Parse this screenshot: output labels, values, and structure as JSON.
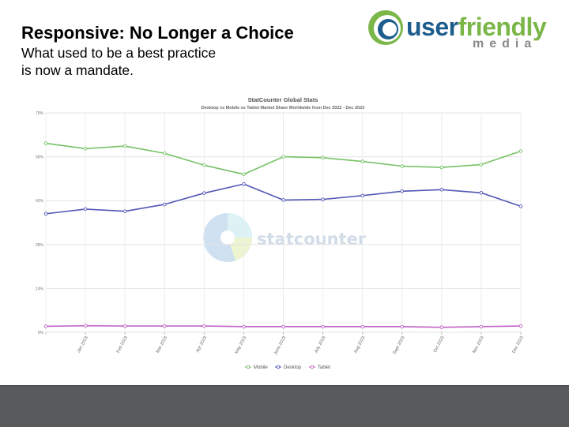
{
  "slide": {
    "title": "Responsive: No Longer a Choice",
    "subtitle_line1": "What used to be a best practice",
    "subtitle_line2": "is now a mandate."
  },
  "logo": {
    "word1": "user",
    "word2": "friendly",
    "word3": "media",
    "colors": {
      "green": "#7ab648",
      "blue": "#1d5d8c",
      "gray": "#8a8a8a"
    }
  },
  "watermark": {
    "text": "statcounter"
  },
  "chart_data": {
    "type": "line",
    "title": "StatCounter Global Stats",
    "subtitle": "Desktop vs Mobile vs Tablet Market Share Worldwide from Dec 2022 - Dec 2023",
    "categories": [
      "",
      "Jan 2023",
      "Feb 2023",
      "Mar 2023",
      "Apr 2023",
      "May 2023",
      "June 2023",
      "July 2023",
      "Aug 2023",
      "Sept 2023",
      "Oct 2023",
      "Nov 2023",
      "Dec 2023"
    ],
    "series": [
      {
        "name": "Mobile",
        "color": "#76c267",
        "values": [
          60.3,
          58.6,
          59.4,
          57.1,
          53.3,
          50.4,
          56.0,
          55.7,
          54.5,
          53.0,
          52.6,
          53.5,
          57.8
        ]
      },
      {
        "name": "Desktop",
        "color": "#5258b6",
        "values": [
          37.8,
          39.3,
          38.6,
          40.8,
          44.4,
          47.3,
          42.2,
          42.4,
          43.6,
          45.0,
          45.5,
          44.5,
          40.2
        ]
      },
      {
        "name": "Tablet",
        "color": "#c167c8",
        "values": [
          1.9,
          2.1,
          2.0,
          2.0,
          2.0,
          1.8,
          1.8,
          1.8,
          1.8,
          1.8,
          1.6,
          1.8,
          2.0
        ]
      }
    ],
    "yticks": [
      "0%",
      "14%",
      "28%",
      "42%",
      "56%",
      "70%"
    ],
    "ylim": [
      0,
      70
    ],
    "grid": true,
    "legend": "bottom-center"
  }
}
